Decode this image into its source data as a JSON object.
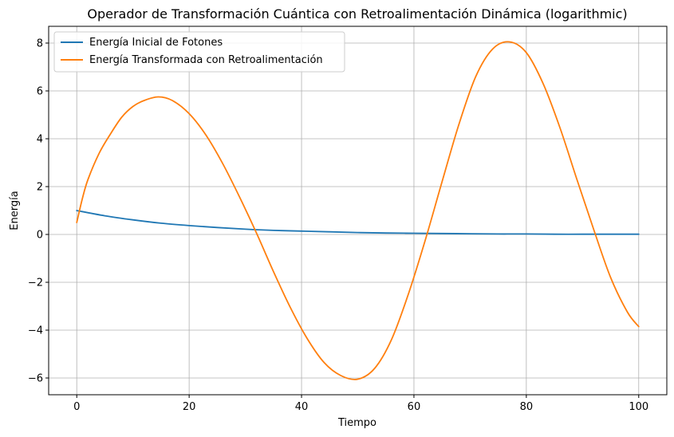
{
  "chart_data": {
    "type": "line",
    "title": "Operador de Transformación Cuántica con Retroalimentación Dinámica (logarithmic)",
    "xlabel": "Tiempo",
    "ylabel": "Energía",
    "xlim": [
      -5,
      105
    ],
    "ylim": [
      -6.7,
      8.7
    ],
    "xticks": [
      0,
      20,
      40,
      60,
      80,
      100
    ],
    "xtick_labels": [
      "0",
      "20",
      "40",
      "60",
      "80",
      "100"
    ],
    "yticks": [
      -6,
      -4,
      -2,
      0,
      2,
      4,
      6,
      8
    ],
    "ytick_labels": [
      "−6",
      "−4",
      "−2",
      "0",
      "2",
      "4",
      "6",
      "8"
    ],
    "grid": true,
    "legend": "top-left",
    "series": [
      {
        "name": "Energía Inicial de Fotones",
        "color": "#1f77b4",
        "x": [
          0,
          5,
          10,
          15,
          20,
          25,
          30,
          35,
          40,
          45,
          50,
          55,
          60,
          65,
          70,
          75,
          80,
          85,
          90,
          95,
          100
        ],
        "y": [
          1.0,
          0.78,
          0.61,
          0.47,
          0.37,
          0.29,
          0.22,
          0.17,
          0.14,
          0.11,
          0.08,
          0.06,
          0.05,
          0.04,
          0.03,
          0.02,
          0.02,
          0.01,
          0.01,
          0.01,
          0.01
        ]
      },
      {
        "name": "Energía Transformada con Retroalimentación",
        "color": "#ff7f0e",
        "x": [
          0,
          1,
          2,
          4,
          6,
          8,
          10,
          12,
          14.5,
          17,
          20,
          23,
          26,
          29,
          32,
          35,
          38,
          41,
          44,
          47,
          50,
          53,
          56,
          59,
          62,
          65,
          68,
          71,
          74,
          77,
          80,
          83,
          86,
          89,
          92,
          95,
          98,
          100
        ],
        "y": [
          0.5,
          1.5,
          2.3,
          3.4,
          4.2,
          4.9,
          5.35,
          5.6,
          5.75,
          5.6,
          5.05,
          4.15,
          2.95,
          1.55,
          0.05,
          -1.55,
          -3.05,
          -4.35,
          -5.35,
          -5.9,
          -6.05,
          -5.6,
          -4.4,
          -2.5,
          -0.25,
          2.2,
          4.6,
          6.6,
          7.75,
          8.05,
          7.6,
          6.3,
          4.45,
          2.3,
          0.2,
          -1.8,
          -3.25,
          -3.85
        ]
      }
    ]
  }
}
